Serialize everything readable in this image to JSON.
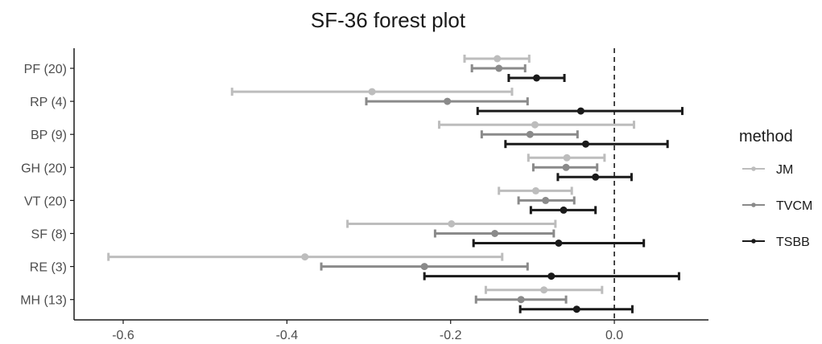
{
  "chart_data": {
    "type": "forest",
    "title": "SF-36 forest plot",
    "xlabel": "",
    "ylabel": "",
    "xlim": [
      -0.66,
      0.115
    ],
    "x_ticks": [
      -0.6,
      -0.4,
      -0.2,
      0.0
    ],
    "x_tick_labels": [
      "-0.6",
      "-0.4",
      "-0.2",
      "0.0"
    ],
    "reference_line": 0.0,
    "categories": [
      "PF (20)",
      "RP (4)",
      "BP (9)",
      "GH (20)",
      "VT (20)",
      "SF (8)",
      "RE (3)",
      "MH (13)"
    ],
    "legend": {
      "title": "method",
      "position": "right"
    },
    "grid": false,
    "series": [
      {
        "name": "JM",
        "color": "#bdbdbd",
        "estimates": [
          -0.143,
          -0.296,
          -0.097,
          -0.058,
          -0.096,
          -0.199,
          -0.378,
          -0.086
        ],
        "lower": [
          -0.183,
          -0.467,
          -0.214,
          -0.105,
          -0.141,
          -0.326,
          -0.618,
          -0.157
        ],
        "upper": [
          -0.104,
          -0.125,
          0.024,
          -0.012,
          -0.052,
          -0.072,
          -0.137,
          -0.015
        ]
      },
      {
        "name": "TVCM",
        "color": "#8a8a8a",
        "estimates": [
          -0.141,
          -0.204,
          -0.103,
          -0.059,
          -0.084,
          -0.146,
          -0.232,
          -0.114
        ],
        "lower": [
          -0.174,
          -0.303,
          -0.162,
          -0.099,
          -0.117,
          -0.219,
          -0.358,
          -0.169
        ],
        "upper": [
          -0.109,
          -0.106,
          -0.045,
          -0.021,
          -0.049,
          -0.074,
          -0.106,
          -0.059
        ]
      },
      {
        "name": "TSBB",
        "color": "#1a1a1a",
        "estimates": [
          -0.095,
          -0.041,
          -0.035,
          -0.023,
          -0.062,
          -0.068,
          -0.077,
          -0.046
        ],
        "lower": [
          -0.129,
          -0.167,
          -0.133,
          -0.069,
          -0.102,
          -0.172,
          -0.232,
          -0.115
        ],
        "upper": [
          -0.061,
          0.083,
          0.065,
          0.021,
          -0.023,
          0.036,
          0.079,
          0.022
        ]
      }
    ]
  }
}
